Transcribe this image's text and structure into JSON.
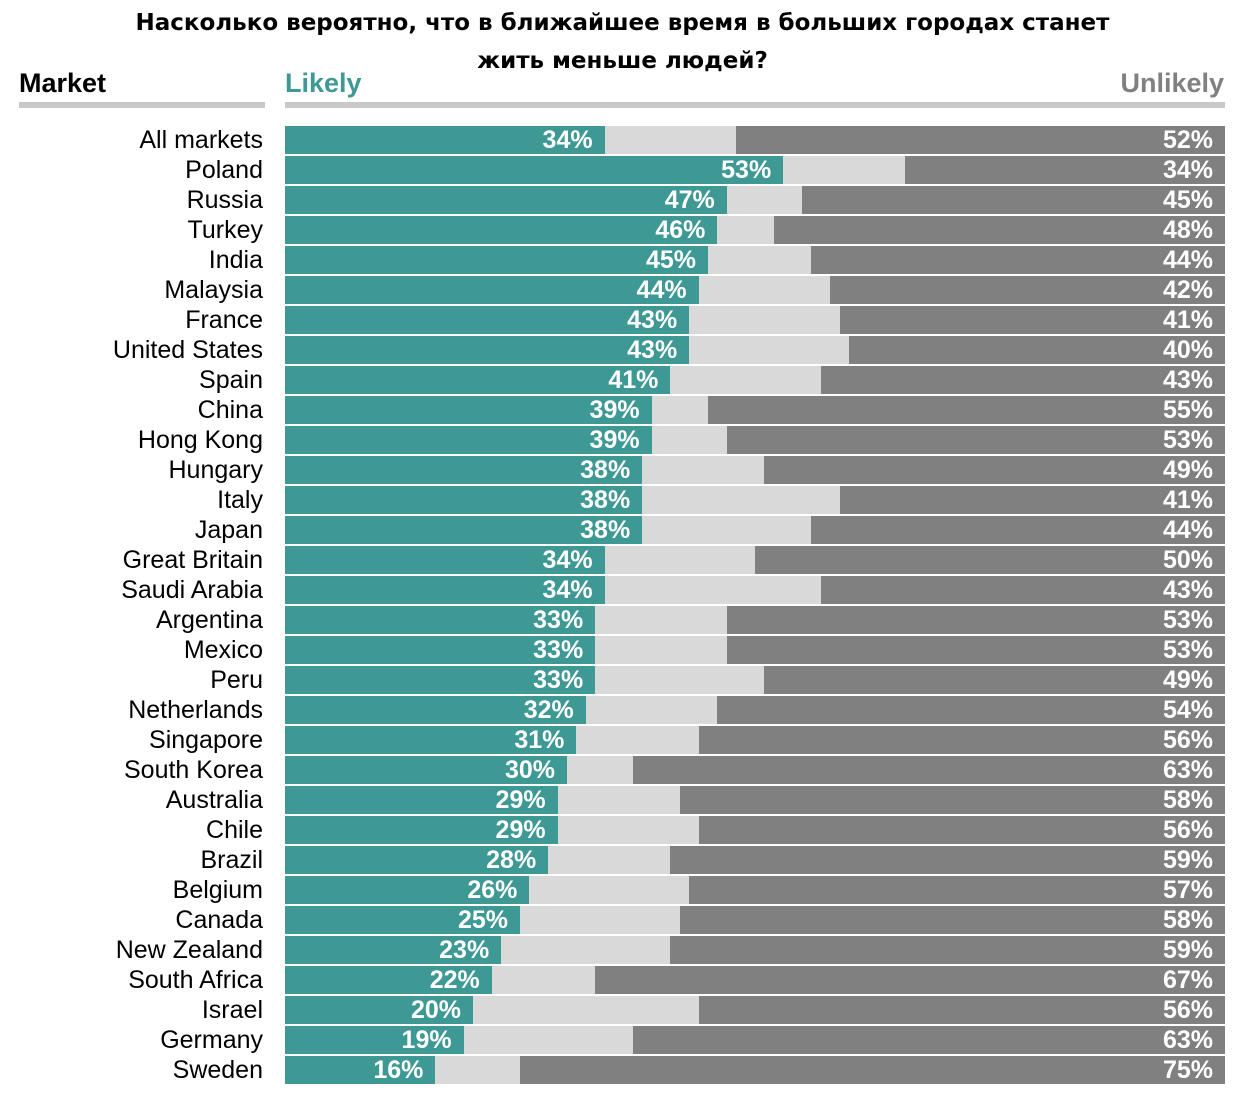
{
  "chart_data": {
    "type": "bar",
    "stacked": true,
    "orientation": "horizontal",
    "title": "Насколько вероятно, что в ближайшее время в больших городах станет жить меньше людей?",
    "category_header": "Market",
    "likely_header": "Likely",
    "unlikely_header": "Unlikely",
    "xlim": [
      0,
      100
    ],
    "colors": {
      "likely": "#3e9995",
      "neutral": "#d9d9d9",
      "unlikely": "#808080"
    },
    "categories": [
      "All markets",
      "Poland",
      "Russia",
      "Turkey",
      "India",
      "Malaysia",
      "France",
      "United States",
      "Spain",
      "China",
      "Hong Kong",
      "Hungary",
      "Italy",
      "Japan",
      "Great Britain",
      "Saudi Arabia",
      "Argentina",
      "Mexico",
      "Peru",
      "Netherlands",
      "Singapore",
      "South Korea",
      "Australia",
      "Chile",
      "Brazil",
      "Belgium",
      "Canada",
      "New Zealand",
      "South Africa",
      "Israel",
      "Germany",
      "Sweden"
    ],
    "series": [
      {
        "name": "Likely",
        "values": [
          34,
          53,
          47,
          46,
          45,
          44,
          43,
          43,
          41,
          39,
          39,
          38,
          38,
          38,
          34,
          34,
          33,
          33,
          33,
          32,
          31,
          30,
          29,
          29,
          28,
          26,
          25,
          23,
          22,
          20,
          19,
          16
        ]
      },
      {
        "name": "Unlikely",
        "values": [
          52,
          34,
          45,
          48,
          44,
          42,
          41,
          40,
          43,
          55,
          53,
          49,
          41,
          44,
          50,
          43,
          53,
          53,
          49,
          54,
          56,
          63,
          58,
          56,
          59,
          57,
          58,
          59,
          67,
          56,
          63,
          75
        ]
      }
    ],
    "likely_labels": [
      "34%",
      "53%",
      "47%",
      "46%",
      "45%",
      "44%",
      "43%",
      "43%",
      "41%",
      "39%",
      "39%",
      "38%",
      "38%",
      "38%",
      "34%",
      "34%",
      "33%",
      "33%",
      "33%",
      "32%",
      "31%",
      "30%",
      "29%",
      "29%",
      "28%",
      "26%",
      "25%",
      "23%",
      "22%",
      "20%",
      "19%",
      "16%"
    ],
    "unlikely_labels": [
      "52%",
      "34%",
      "45%",
      "48%",
      "44%",
      "42%",
      "41%",
      "40%",
      "43%",
      "55%",
      "53%",
      "49%",
      "41%",
      "44%",
      "50%",
      "43%",
      "53%",
      "53%",
      "49%",
      "54%",
      "56%",
      "63%",
      "58%",
      "56%",
      "59%",
      "57%",
      "58%",
      "59%",
      "67%",
      "56%",
      "63%",
      "75%"
    ]
  }
}
